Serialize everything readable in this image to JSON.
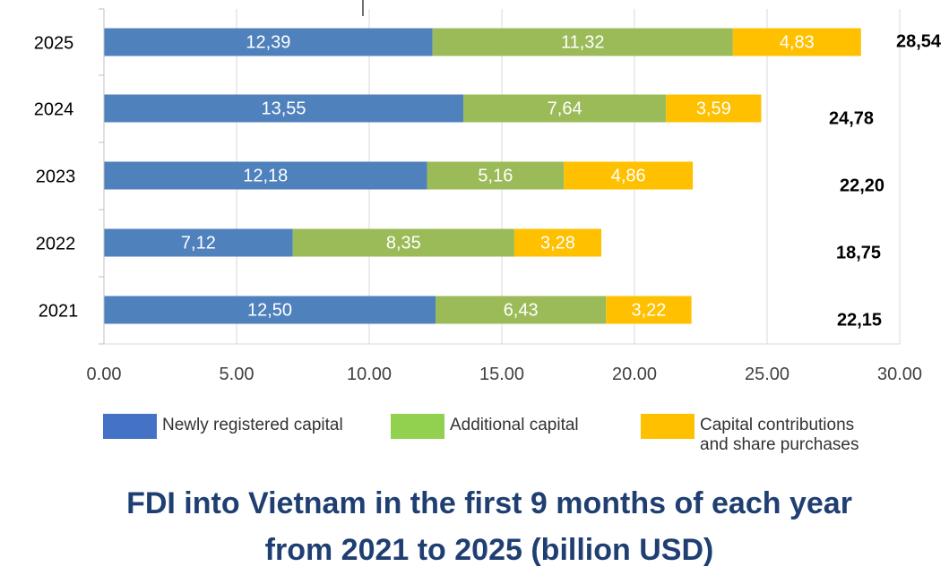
{
  "colors": {
    "newly_registered": "#4f81bd",
    "additional": "#9bbb59",
    "contributions": "#ffc000",
    "title": "#1f3f73"
  },
  "chart_data": {
    "type": "bar",
    "orientation": "horizontal",
    "stacked": true,
    "categories": [
      "2025",
      "2024",
      "2023",
      "2022",
      "2021"
    ],
    "series": [
      {
        "name": "Newly registered capital",
        "values": [
          12.39,
          13.55,
          12.18,
          7.12,
          12.5
        ],
        "labels": [
          "12,39",
          "13,55",
          "12,18",
          "7,12",
          "12,50"
        ]
      },
      {
        "name": "Additional capital",
        "values": [
          11.32,
          7.64,
          5.16,
          8.35,
          6.43
        ],
        "labels": [
          "11,32",
          "7,64",
          "5,16",
          "8,35",
          "6,43"
        ]
      },
      {
        "name": "Capital contributions and share purchases",
        "values": [
          4.83,
          3.59,
          4.86,
          3.28,
          3.22
        ],
        "labels": [
          "4,83",
          "3,59",
          "4,86",
          "3,28",
          "3,22"
        ]
      }
    ],
    "totals": [
      "28,54",
      "24,78",
      "22,20",
      "18,75",
      "22,15"
    ],
    "xlim": [
      0,
      30
    ],
    "xticks": [
      "0.00",
      "5.00",
      "10.00",
      "15.00",
      "20.00",
      "25.00",
      "30.00"
    ],
    "grid": true,
    "legend_position": "bottom",
    "title": "FDI into Vietnam in the first 9 months of each year from  2021 to 2025 (billion USD)"
  },
  "legend": {
    "newly": "Newly registered capital",
    "additional": "Additional capital",
    "contrib_line1": "Capital contributions",
    "contrib_line2": "and share purchases"
  },
  "title": {
    "line1": "FDI into Vietnam in the first 9 months of each year",
    "line2": "from  2021 to 2025 (billion USD)"
  }
}
